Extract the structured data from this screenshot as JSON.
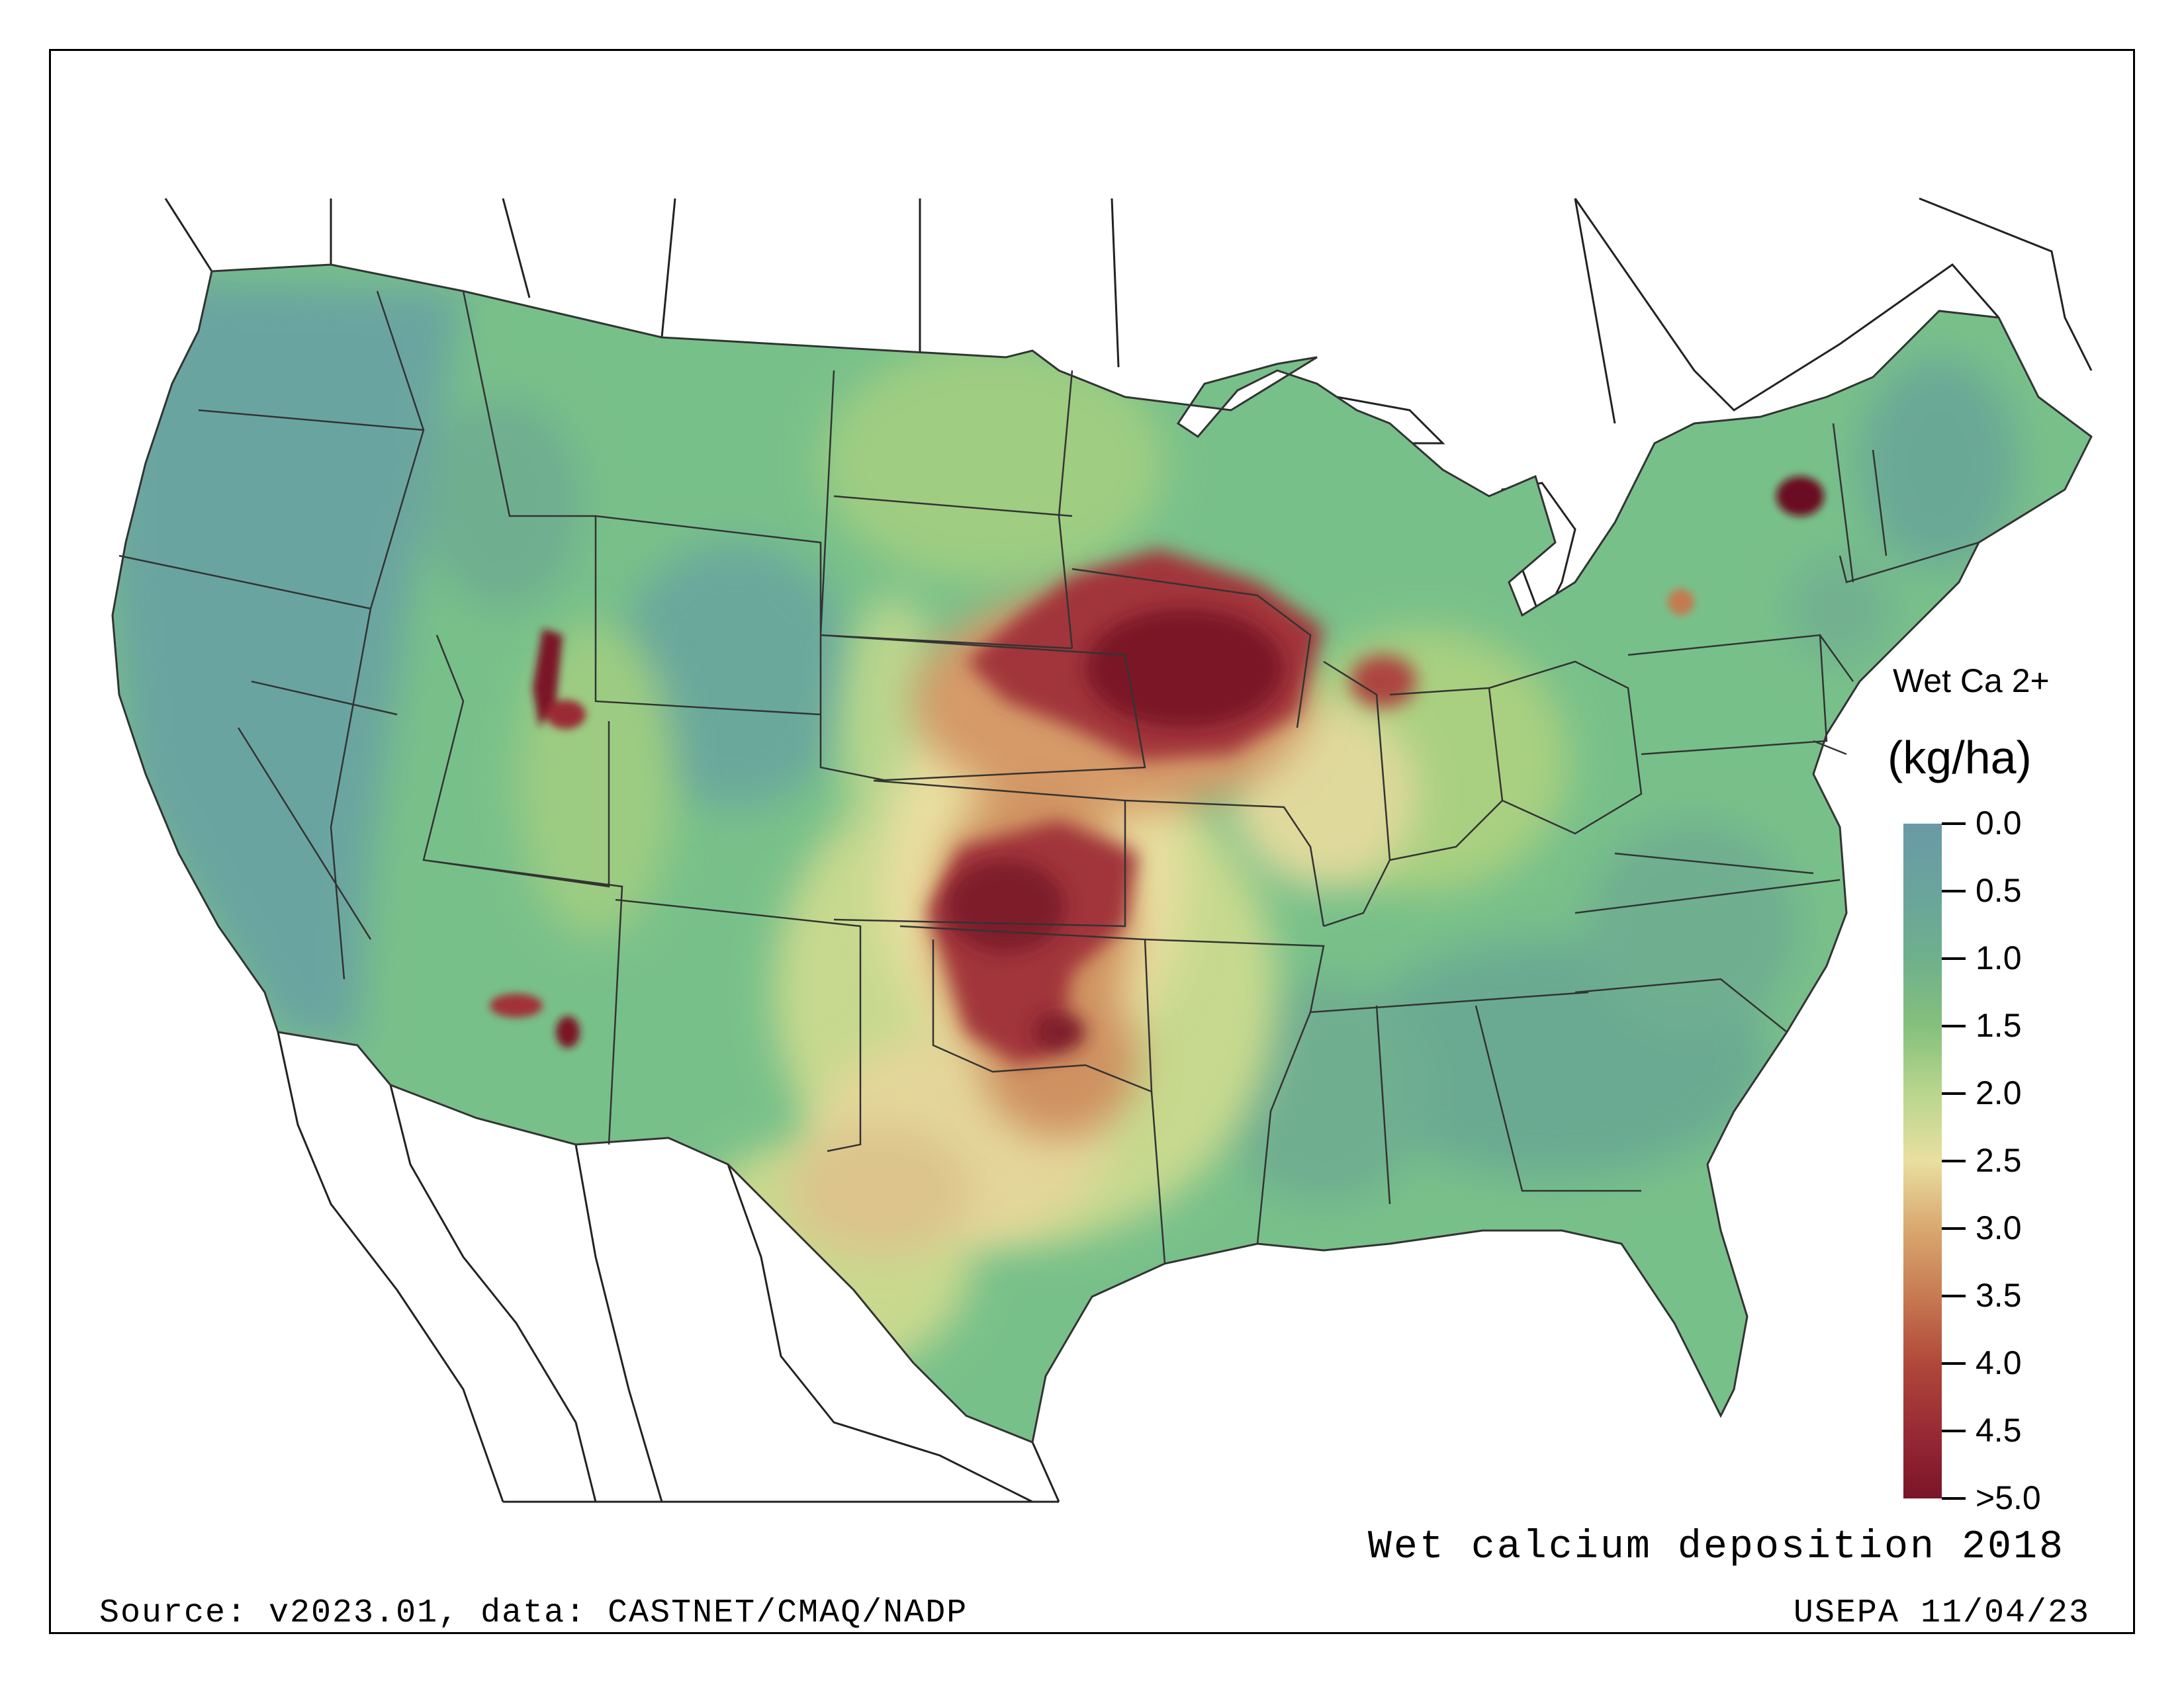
{
  "map": {
    "title": "Wet calcium deposition 2018",
    "source": "Source: v2023.01, data: CASTNET/CMAQ/NADP",
    "agency_date": "USEPA 11/04/23",
    "region": "Contiguous United States",
    "background_color": "#ffffff",
    "boundary_color": "#222222"
  },
  "legend": {
    "title_line1": "Wet Ca 2+",
    "title_line2": "(kg/ha)",
    "ticks": [
      "0.0",
      "0.5",
      "1.0",
      "1.5",
      "2.0",
      "2.5",
      "3.0",
      "3.5",
      "4.0",
      "4.5",
      ">5.0"
    ],
    "colors": [
      "#6a9aa6",
      "#6aa49c",
      "#6fb08c",
      "#85c07c",
      "#b9d68e",
      "#e9dfa0",
      "#d9a870",
      "#c77a52",
      "#b0483a",
      "#992a35",
      "#7a1428"
    ]
  },
  "deposition_hotspots": [
    {
      "area": "Iowa / southern Minnesota / Nebraska",
      "level": ">5.0"
    },
    {
      "area": "Kansas / Oklahoma border",
      "level": ">5.0"
    },
    {
      "area": "Northern New York",
      "level": ">5.0"
    },
    {
      "area": "Central Utah",
      "level": "4.5"
    },
    {
      "area": "Central Arizona",
      "level": "4.5"
    }
  ]
}
